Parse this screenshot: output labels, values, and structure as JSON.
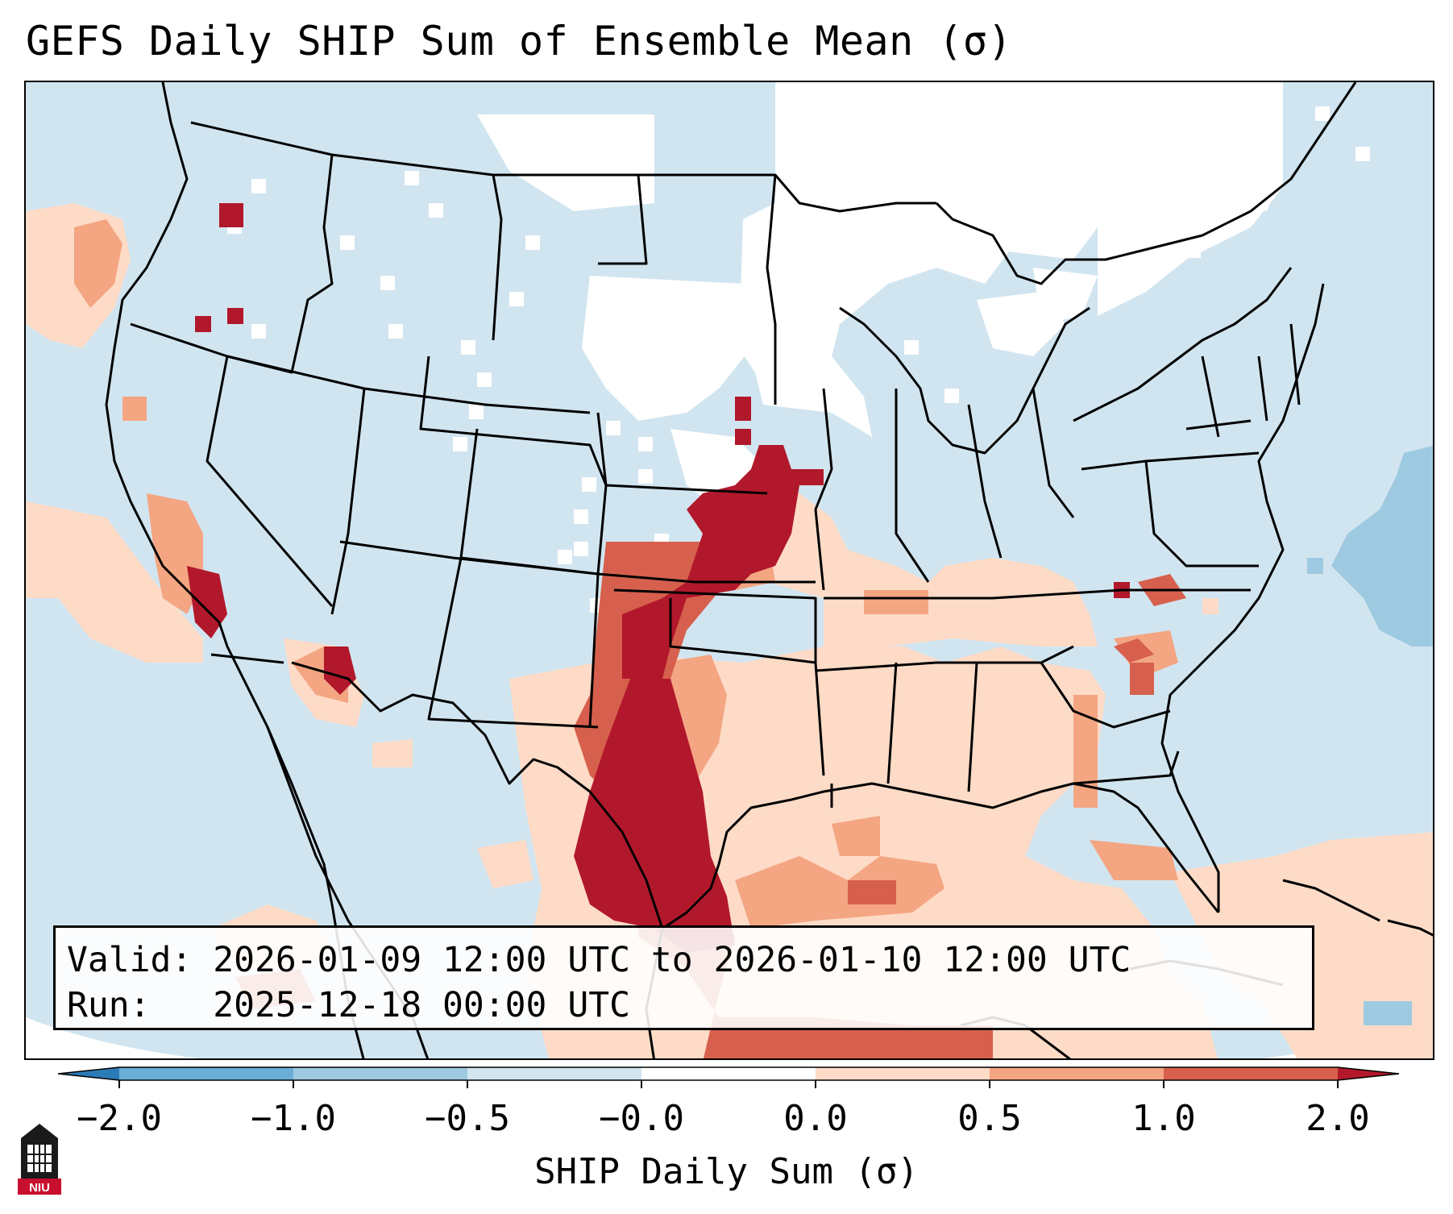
{
  "title": "GEFS Daily SHIP Sum of Ensemble Mean (σ)",
  "info": {
    "valid_label": "Valid:",
    "valid_value": "2026-01-09 12:00 UTC to 2026-01-10 12:00 UTC",
    "run_label": "Run:",
    "run_value": "2025-12-18 00:00 UTC"
  },
  "colorbar": {
    "title": "SHIP Daily Sum (σ)",
    "tick_labels": [
      "−2.0",
      "−1.0",
      "−0.5",
      "−0.0",
      "0.0",
      "0.5",
      "1.0",
      "2.0"
    ],
    "colors": [
      "#2c7bb6",
      "#6baed6",
      "#9ecae1",
      "#d1e5f0",
      "#ffffff",
      "#fddbc7",
      "#f4a582",
      "#d6604d",
      "#b2182b"
    ]
  },
  "colors": {
    "ocean_bg": "#d1e5f0",
    "land_low": "#d1e5f0",
    "neutral": "#ffffff",
    "pos_low": "#fddbc7",
    "pos_mid": "#f4a582",
    "pos_high": "#d6604d",
    "pos_max": "#b2182b",
    "neg_mid": "#9ecae1"
  },
  "logo": {
    "text": "NIU",
    "icon": "niu-logo-icon"
  }
}
